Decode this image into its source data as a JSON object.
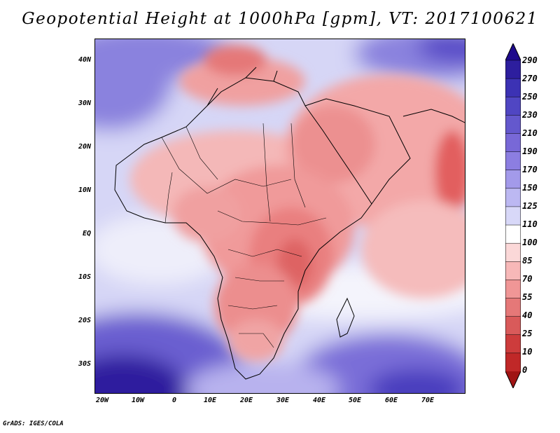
{
  "title": "Geopotential Height at 1000hPa [gpm], VT: 2017100621",
  "credit": "GrADS: IGES/COLA",
  "map": {
    "lon_range": [
      -24,
      80
    ],
    "lat_range": [
      -38,
      45
    ],
    "lat_labels": [
      {
        "lat": 40,
        "text": "40N"
      },
      {
        "lat": 30,
        "text": "30N"
      },
      {
        "lat": 20,
        "text": "20N"
      },
      {
        "lat": 10,
        "text": "10N"
      },
      {
        "lat": 0,
        "text": "EQ"
      },
      {
        "lat": -10,
        "text": "10S"
      },
      {
        "lat": -20,
        "text": "20S"
      },
      {
        "lat": -30,
        "text": "30S"
      }
    ],
    "lon_labels": [
      {
        "lon": -20,
        "text": "20W"
      },
      {
        "lon": -10,
        "text": "10W"
      },
      {
        "lon": 0,
        "text": "0"
      },
      {
        "lon": 10,
        "text": "10E"
      },
      {
        "lon": 20,
        "text": "20E"
      },
      {
        "lon": 30,
        "text": "30E"
      },
      {
        "lon": 40,
        "text": "40E"
      },
      {
        "lon": 50,
        "text": "50E"
      },
      {
        "lon": 60,
        "text": "60E"
      },
      {
        "lon": 70,
        "text": "70E"
      }
    ]
  },
  "colorbar": {
    "levels": [
      "290",
      "270",
      "250",
      "230",
      "210",
      "190",
      "170",
      "150",
      "125",
      "110",
      "100",
      "85",
      "70",
      "55",
      "40",
      "25",
      "10",
      "0"
    ],
    "colors": [
      "#1e0a8c",
      "#2d1e9e",
      "#3c32b4",
      "#5046c3",
      "#6458cd",
      "#7868d7",
      "#8c7ee1",
      "#a39aea",
      "#bcb8f2",
      "#d8d8f8",
      "#ffffff",
      "#fbd8d8",
      "#f7b8b8",
      "#f09696",
      "#e57878",
      "#d95a5a",
      "#cd3c3c",
      "#c02828",
      "#a01414"
    ]
  }
}
